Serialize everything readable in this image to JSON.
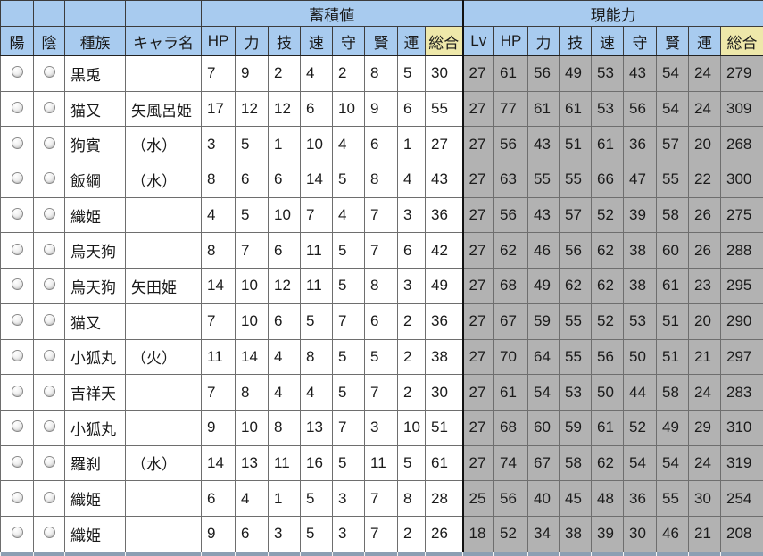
{
  "table": {
    "header_groups": [
      {
        "label": "蓄積値",
        "span": 8
      },
      {
        "label": "現能力",
        "span": 9
      }
    ],
    "columns": [
      "陽",
      "陰",
      "種族",
      "キャラ名",
      "HP",
      "力",
      "技",
      "速",
      "守",
      "賢",
      "運",
      "総合",
      "Lv",
      "HP",
      "力",
      "技",
      "速",
      "守",
      "賢",
      "運",
      "総合"
    ],
    "rows": [
      {
        "species": "黒兎",
        "name": "",
        "accum": [
          7,
          9,
          2,
          4,
          2,
          8,
          5,
          30
        ],
        "current": [
          27,
          61,
          56,
          49,
          53,
          43,
          54,
          24,
          279
        ]
      },
      {
        "species": "猫又",
        "name": "矢風呂姫",
        "accum": [
          17,
          12,
          12,
          6,
          10,
          9,
          6,
          55
        ],
        "current": [
          27,
          77,
          61,
          61,
          53,
          56,
          54,
          24,
          309
        ]
      },
      {
        "species": "狗賓",
        "name": "（水）",
        "accum": [
          3,
          5,
          1,
          10,
          4,
          6,
          1,
          27
        ],
        "current": [
          27,
          56,
          43,
          51,
          61,
          36,
          57,
          20,
          268
        ]
      },
      {
        "species": "飯綱",
        "name": "（水）",
        "accum": [
          8,
          6,
          6,
          14,
          5,
          8,
          4,
          43
        ],
        "current": [
          27,
          63,
          55,
          55,
          66,
          47,
          55,
          22,
          300
        ]
      },
      {
        "species": "織姫",
        "name": "",
        "accum": [
          4,
          5,
          10,
          7,
          4,
          7,
          3,
          36
        ],
        "current": [
          27,
          56,
          43,
          57,
          52,
          39,
          58,
          26,
          275
        ]
      },
      {
        "species": "烏天狗",
        "name": "",
        "accum": [
          8,
          7,
          6,
          11,
          5,
          7,
          6,
          42
        ],
        "current": [
          27,
          62,
          46,
          56,
          62,
          38,
          60,
          26,
          288
        ]
      },
      {
        "species": "烏天狗",
        "name": "矢田姫",
        "accum": [
          14,
          10,
          12,
          11,
          5,
          8,
          3,
          49
        ],
        "current": [
          27,
          68,
          49,
          62,
          62,
          38,
          61,
          23,
          295
        ]
      },
      {
        "species": "猫又",
        "name": "",
        "accum": [
          7,
          10,
          6,
          5,
          7,
          6,
          2,
          36
        ],
        "current": [
          27,
          67,
          59,
          55,
          52,
          53,
          51,
          20,
          290
        ]
      },
      {
        "species": "小狐丸",
        "name": "（火）",
        "accum": [
          11,
          14,
          4,
          8,
          5,
          5,
          2,
          38
        ],
        "current": [
          27,
          70,
          64,
          55,
          56,
          50,
          51,
          21,
          297
        ]
      },
      {
        "species": "吉祥天",
        "name": "",
        "accum": [
          7,
          8,
          4,
          4,
          5,
          7,
          2,
          30
        ],
        "current": [
          27,
          61,
          54,
          53,
          50,
          44,
          58,
          24,
          283
        ]
      },
      {
        "species": "小狐丸",
        "name": "",
        "accum": [
          9,
          10,
          8,
          13,
          7,
          3,
          10,
          51
        ],
        "current": [
          27,
          68,
          60,
          59,
          61,
          52,
          49,
          29,
          310
        ]
      },
      {
        "species": "羅刹",
        "name": "（水）",
        "accum": [
          14,
          13,
          11,
          16,
          5,
          11,
          5,
          61
        ],
        "current": [
          27,
          74,
          67,
          58,
          62,
          54,
          54,
          24,
          319
        ]
      },
      {
        "species": "織姫",
        "name": "",
        "accum": [
          6,
          4,
          1,
          5,
          3,
          7,
          8,
          28
        ],
        "current": [
          25,
          56,
          40,
          45,
          48,
          36,
          55,
          30,
          254
        ]
      },
      {
        "species": "織姫",
        "name": "",
        "accum": [
          9,
          6,
          3,
          5,
          3,
          7,
          2,
          26
        ],
        "current": [
          18,
          52,
          34,
          38,
          39,
          30,
          46,
          21,
          208
        ]
      }
    ]
  },
  "colors": {
    "header_blue": "#A8CBEF",
    "total_yellow": "#EEE8AA",
    "current_gray": "#B2B2B2",
    "cutoff_row_blue": "#8C9FB3"
  },
  "icons": {
    "yang_radio": "radio-button-unchecked",
    "yin_radio": "radio-button-unchecked"
  }
}
